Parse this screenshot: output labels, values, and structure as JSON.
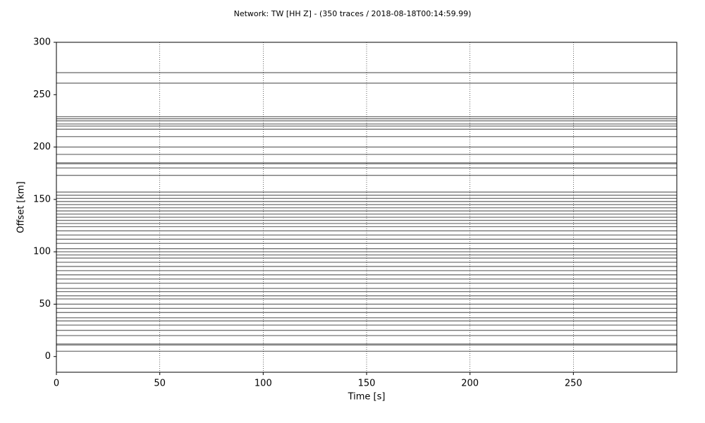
{
  "chart_data": {
    "type": "section",
    "title": "Network: TW [HH Z] - (350 traces / 2018-08-18T00:14:59.99)",
    "xlabel": "Time [s]",
    "ylabel": "Offset [km]",
    "xlim": [
      0,
      300
    ],
    "ylim": [
      -15,
      300
    ],
    "xticks": [
      0,
      50,
      100,
      150,
      200,
      250
    ],
    "yticks": [
      0,
      50,
      100,
      150,
      200,
      250,
      300
    ],
    "grid": true,
    "color": "#000000",
    "offsets": [
      271,
      261,
      229,
      227,
      225,
      222,
      220,
      217,
      210,
      200,
      193,
      185,
      184,
      180,
      173,
      157,
      154,
      151,
      148,
      145,
      142,
      139,
      136,
      133,
      130,
      127,
      124,
      120,
      116,
      112,
      108,
      103,
      100,
      97,
      94,
      90,
      86,
      82,
      78,
      74,
      70,
      65,
      62,
      58,
      55,
      50,
      46,
      42,
      37,
      34,
      30,
      25,
      20,
      12,
      11,
      5
    ]
  }
}
